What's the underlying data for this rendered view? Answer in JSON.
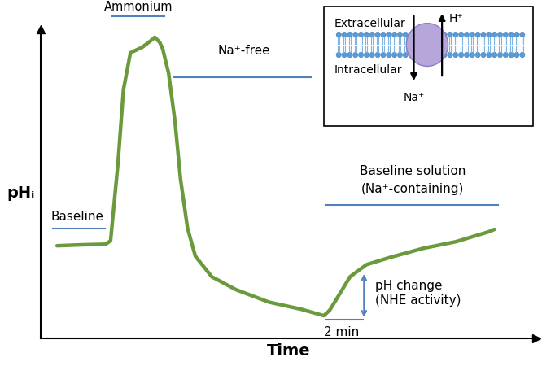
{
  "chart_data": {
    "type": "line",
    "x_label": "Time",
    "y_label": "pHᵢ",
    "x": [
      3.3,
      8.2,
      13.1,
      14.1,
      15.6,
      16.7,
      18.1,
      20.5,
      22.2,
      23.0,
      24.0,
      24.6,
      25.8,
      27.1,
      28.2,
      29.6,
      31.2,
      34.5,
      39.4,
      46.0,
      52.5,
      57.1,
      58.3,
      59.9,
      62.4,
      65.7,
      70.6,
      77.2,
      83.7,
      90.3,
      91.5
    ],
    "values": [
      30.0,
      30.3,
      30.5,
      31.6,
      56.8,
      80.5,
      92.4,
      94.2,
      96.3,
      97.4,
      95.8,
      93.7,
      85.8,
      70.0,
      51.6,
      35.8,
      26.6,
      20.0,
      15.8,
      11.8,
      9.5,
      7.4,
      9.2,
      13.4,
      20.0,
      23.9,
      26.3,
      29.2,
      31.3,
      34.5,
      35.3
    ],
    "color": "#6b9a3c",
    "xlim": [
      0,
      100
    ],
    "ylim": [
      0,
      100
    ],
    "xticks": [],
    "yticks": [],
    "tick_labels": false,
    "grid": false,
    "annotations": {
      "baseline": "Baseline",
      "ammonium": "Ammonium",
      "na_free": "Na⁺-free",
      "baseline_solution_1": "Baseline solution",
      "baseline_solution_2": "(Na⁺-containing)",
      "ph_change": "pH change\n(NHE activity)",
      "duration": "2 min"
    },
    "inset": {
      "extracellular": "Extracellular",
      "intracellular": "Intracellular",
      "influx": "Na⁺",
      "efflux": "H⁺"
    }
  }
}
